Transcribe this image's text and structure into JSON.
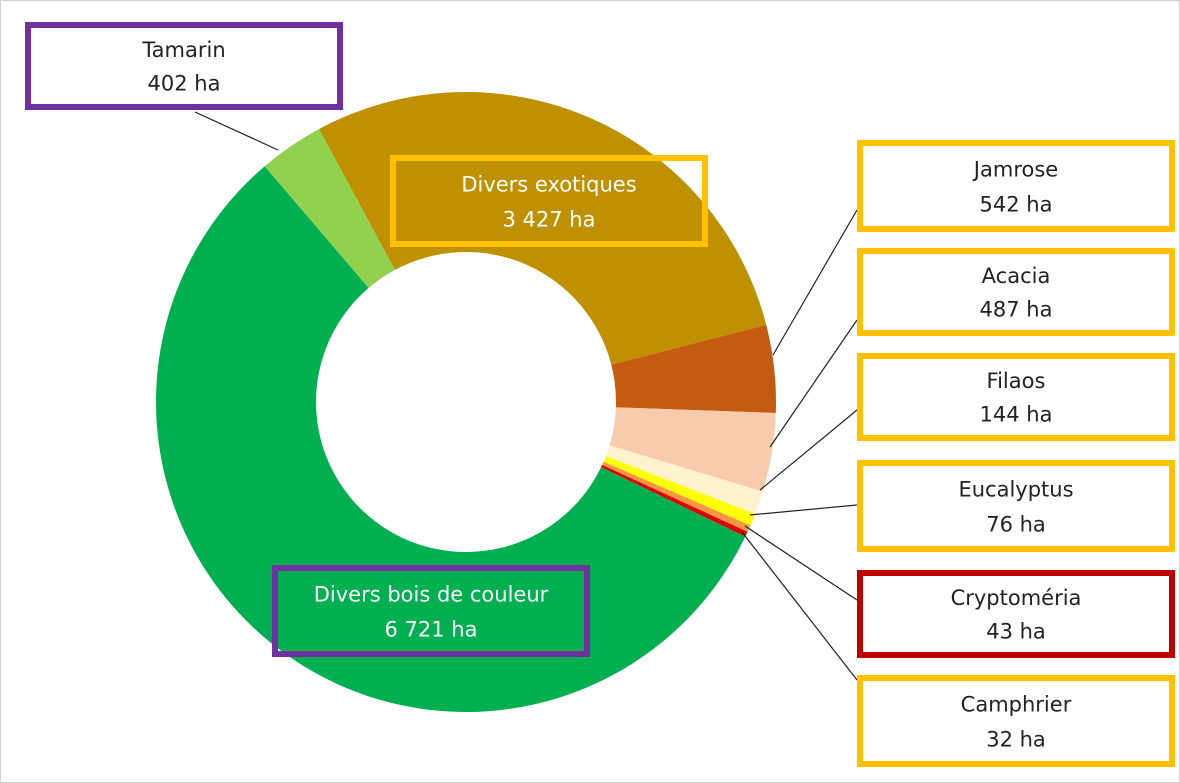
{
  "chart_data": {
    "type": "pie",
    "donut": true,
    "categories": [
      "Divers exotiques",
      "Jamrose",
      "Acacia",
      "Filaos",
      "Eucalyptus",
      "Cryptoméria",
      "Camphrier",
      "Divers bois de couleur",
      "Tamarin"
    ],
    "values": [
      3427,
      542,
      487,
      144,
      76,
      43,
      32,
      6721,
      402
    ],
    "value_labels": [
      "3 427 ha",
      "542 ha",
      "487 ha",
      "144 ha",
      "76 ha",
      "43 ha",
      "32 ha",
      "6 721 ha",
      "402 ha"
    ],
    "colors": [
      "#bf9000",
      "#c55a11",
      "#f8cbad",
      "#fff2cc",
      "#ffff00",
      "#f79646",
      "#e00000",
      "#00b050",
      "#92d050"
    ]
  }
}
